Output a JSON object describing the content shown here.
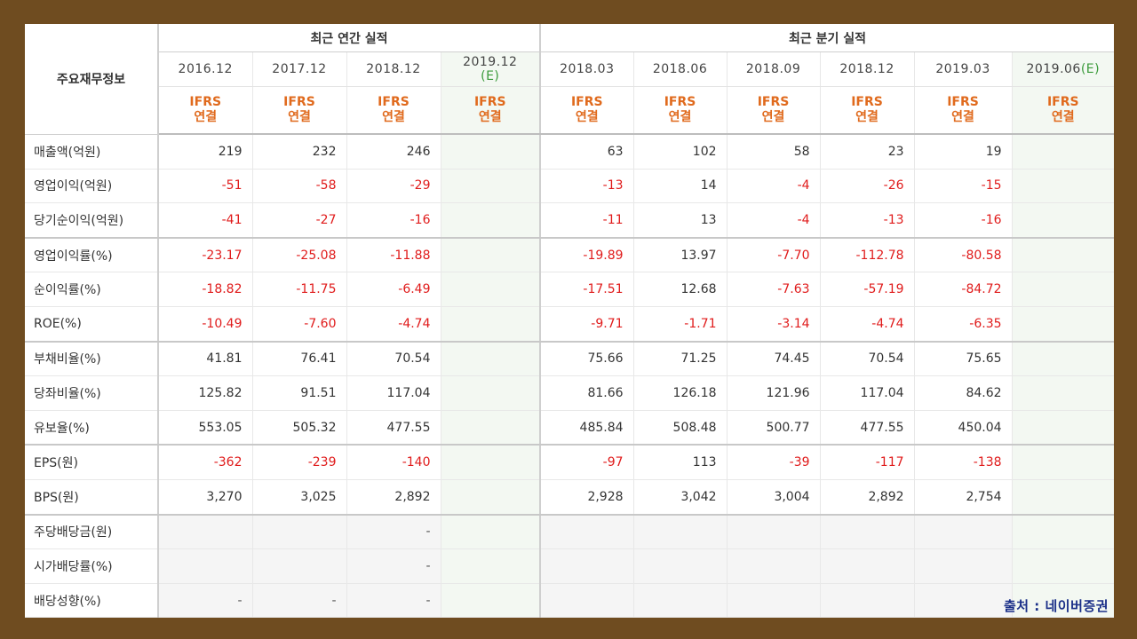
{
  "table": {
    "row_header_label": "주요재무정보",
    "annual_group_label": "최근 연간 실적",
    "quarter_group_label": "최근 분기 실적",
    "periods": [
      {
        "date": "2016.12",
        "est": ""
      },
      {
        "date": "2017.12",
        "est": ""
      },
      {
        "date": "2018.12",
        "est": ""
      },
      {
        "date": "2019.12",
        "est": "(E)"
      },
      {
        "date": "2018.03",
        "est": ""
      },
      {
        "date": "2018.06",
        "est": ""
      },
      {
        "date": "2018.09",
        "est": ""
      },
      {
        "date": "2018.12",
        "est": ""
      },
      {
        "date": "2019.03",
        "est": ""
      },
      {
        "date": "2019.06",
        "est": "(E)"
      }
    ],
    "ifrs_line1": "IFRS",
    "ifrs_line2": "연결",
    "rows": [
      {
        "label": "매출액(억원)",
        "values": [
          "219",
          "232",
          "246",
          "",
          "63",
          "102",
          "58",
          "23",
          "19",
          ""
        ]
      },
      {
        "label": "영업이익(억원)",
        "values": [
          "-51",
          "-58",
          "-29",
          "",
          "-13",
          "14",
          "-4",
          "-26",
          "-15",
          ""
        ]
      },
      {
        "label": "당기순이익(억원)",
        "values": [
          "-41",
          "-27",
          "-16",
          "",
          "-11",
          "13",
          "-4",
          "-13",
          "-16",
          ""
        ]
      },
      {
        "label": "영업이익률(%)",
        "values": [
          "-23.17",
          "-25.08",
          "-11.88",
          "",
          "-19.89",
          "13.97",
          "-7.70",
          "-112.78",
          "-80.58",
          ""
        ]
      },
      {
        "label": "순이익률(%)",
        "values": [
          "-18.82",
          "-11.75",
          "-6.49",
          "",
          "-17.51",
          "12.68",
          "-7.63",
          "-57.19",
          "-84.72",
          ""
        ]
      },
      {
        "label": "ROE(%)",
        "values": [
          "-10.49",
          "-7.60",
          "-4.74",
          "",
          "-9.71",
          "-1.71",
          "-3.14",
          "-4.74",
          "-6.35",
          ""
        ]
      },
      {
        "label": "부채비율(%)",
        "values": [
          "41.81",
          "76.41",
          "70.54",
          "",
          "75.66",
          "71.25",
          "74.45",
          "70.54",
          "75.65",
          ""
        ]
      },
      {
        "label": "당좌비율(%)",
        "values": [
          "125.82",
          "91.51",
          "117.04",
          "",
          "81.66",
          "126.18",
          "121.96",
          "117.04",
          "84.62",
          ""
        ]
      },
      {
        "label": "유보율(%)",
        "values": [
          "553.05",
          "505.32",
          "477.55",
          "",
          "485.84",
          "508.48",
          "500.77",
          "477.55",
          "450.04",
          ""
        ]
      },
      {
        "label": "EPS(원)",
        "values": [
          "-362",
          "-239",
          "-140",
          "",
          "-97",
          "113",
          "-39",
          "-117",
          "-138",
          ""
        ]
      },
      {
        "label": "BPS(원)",
        "values": [
          "3,270",
          "3,025",
          "2,892",
          "",
          "2,928",
          "3,042",
          "3,004",
          "2,892",
          "2,754",
          ""
        ]
      },
      {
        "label": "주당배당금(원)",
        "values": [
          "",
          "",
          "-",
          "",
          "",
          "",
          "",
          "",
          "",
          ""
        ]
      },
      {
        "label": "시가배당률(%)",
        "values": [
          "",
          "",
          "-",
          "",
          "",
          "",
          "",
          "",
          "",
          ""
        ]
      },
      {
        "label": "배당성향(%)",
        "values": [
          "-",
          "-",
          "-",
          "",
          "",
          "",
          "",
          "",
          "",
          ""
        ]
      }
    ],
    "group_end_rows": [
      2,
      5,
      8,
      10
    ],
    "empty_rows": [
      11,
      12,
      13
    ]
  },
  "source_label": "출처 : 네이버증권",
  "colors": {
    "frame": "#6f4c20",
    "negative": "#e01b1b",
    "ifrs": "#e06a1d",
    "estimate_bg": "#f3f8f2",
    "estimate_mark": "#3a9a3a",
    "source": "#1a2f88"
  }
}
